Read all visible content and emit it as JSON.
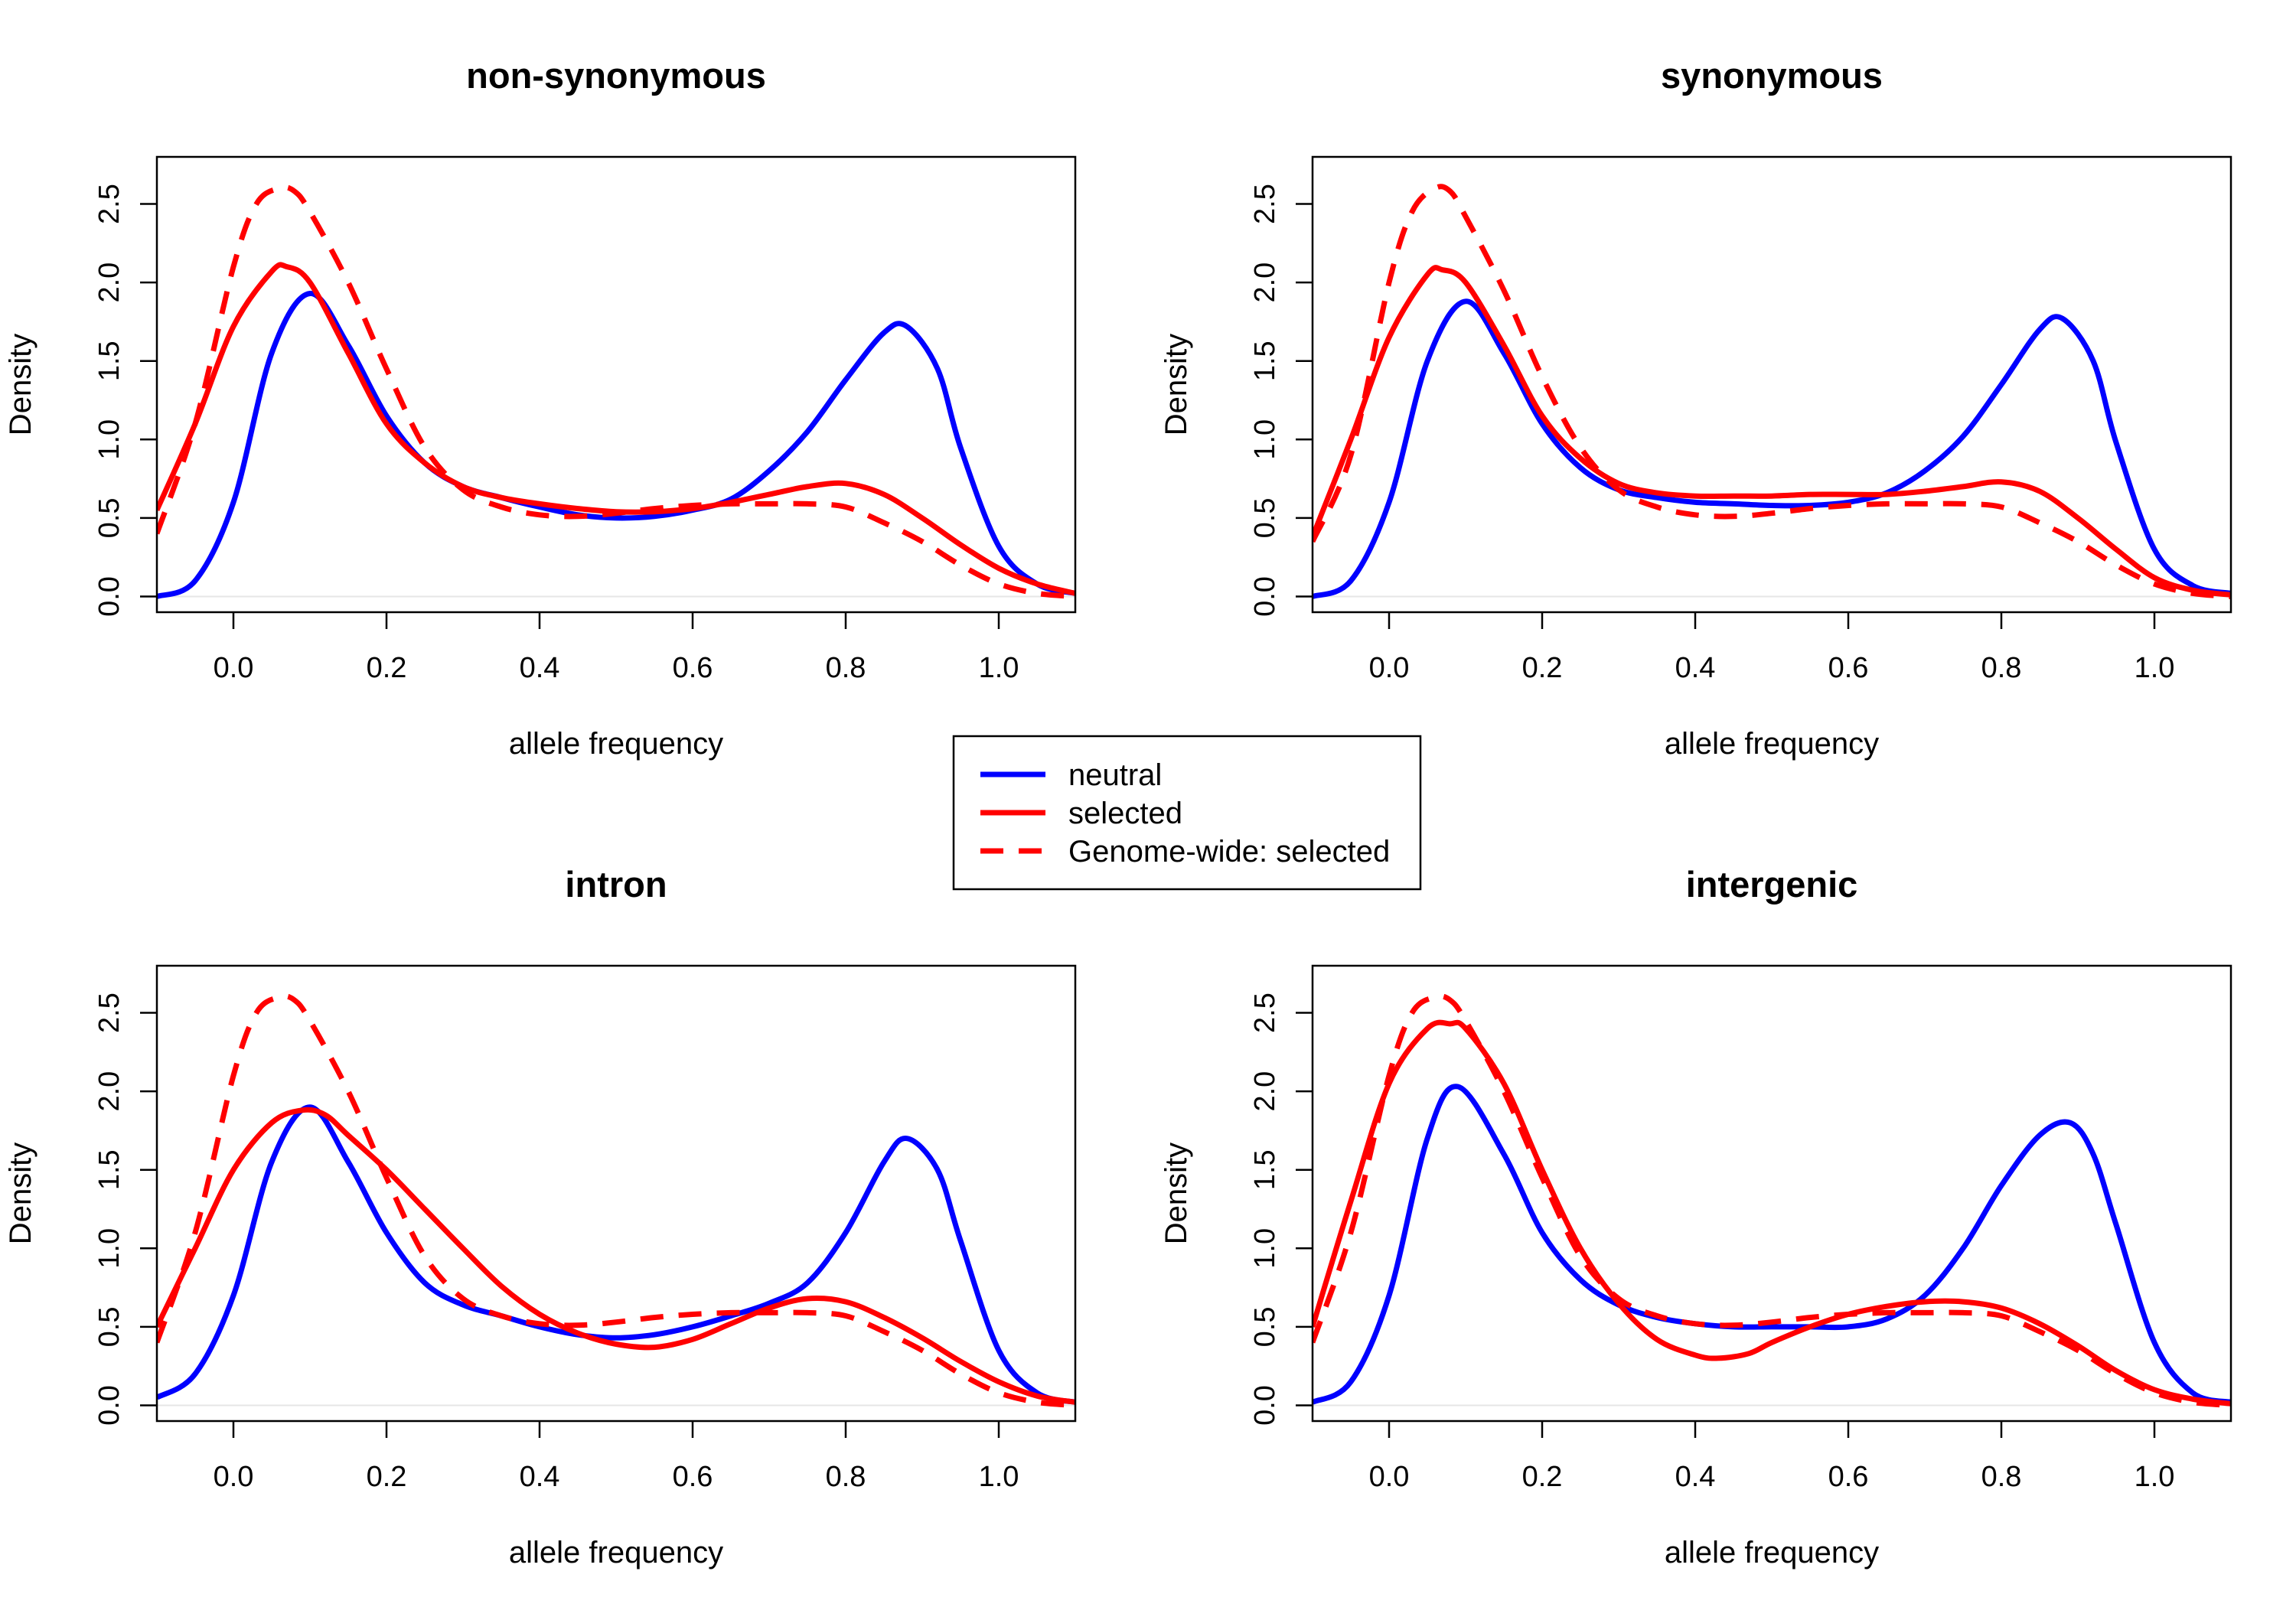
{
  "colors": {
    "neutral": "#0000ff",
    "selected": "#ff0000",
    "axis": "#000000"
  },
  "legend": {
    "placement": "center",
    "entries": [
      {
        "label": "neutral",
        "color": "#0000ff",
        "dash": "solid"
      },
      {
        "label": "selected",
        "color": "#ff0000",
        "dash": "solid"
      },
      {
        "label": "Genome-wide: selected",
        "color": "#ff0000",
        "dash": "dashed"
      }
    ]
  },
  "chart_data": [
    {
      "type": "line",
      "title": "non-synonymous",
      "xlabel": "allele frequency",
      "ylabel": "Density",
      "xlim": [
        -0.1,
        1.1
      ],
      "ylim": [
        -0.1,
        2.8
      ],
      "xticks": [
        "0.0",
        "0.2",
        "0.4",
        "0.6",
        "0.8",
        "1.0"
      ],
      "yticks": [
        "0.0",
        "0.5",
        "1.0",
        "1.5",
        "2.0",
        "2.5"
      ],
      "series": [
        {
          "name": "neutral",
          "color": "#0000ff",
          "dash": "solid",
          "x": [
            -0.1,
            -0.05,
            0.0,
            0.05,
            0.1,
            0.15,
            0.2,
            0.25,
            0.3,
            0.35,
            0.4,
            0.45,
            0.5,
            0.55,
            0.6,
            0.65,
            0.7,
            0.75,
            0.8,
            0.85,
            0.88,
            0.92,
            0.95,
            1.0,
            1.05,
            1.1
          ],
          "y": [
            0.0,
            0.1,
            0.6,
            1.55,
            1.93,
            1.6,
            1.15,
            0.85,
            0.7,
            0.63,
            0.57,
            0.52,
            0.5,
            0.51,
            0.55,
            0.62,
            0.8,
            1.05,
            1.38,
            1.68,
            1.72,
            1.45,
            0.95,
            0.32,
            0.08,
            0.02
          ]
        },
        {
          "name": "selected",
          "color": "#ff0000",
          "dash": "solid",
          "x": [
            -0.1,
            -0.05,
            0.0,
            0.05,
            0.07,
            0.1,
            0.15,
            0.2,
            0.25,
            0.3,
            0.35,
            0.4,
            0.45,
            0.5,
            0.55,
            0.6,
            0.65,
            0.7,
            0.75,
            0.8,
            0.85,
            0.9,
            0.95,
            1.0,
            1.05,
            1.1
          ],
          "y": [
            0.55,
            1.1,
            1.72,
            2.07,
            2.1,
            2.0,
            1.55,
            1.1,
            0.85,
            0.7,
            0.63,
            0.59,
            0.56,
            0.54,
            0.54,
            0.56,
            0.6,
            0.65,
            0.7,
            0.72,
            0.65,
            0.5,
            0.33,
            0.18,
            0.08,
            0.02
          ]
        },
        {
          "name": "Genome-wide: selected",
          "color": "#ff0000",
          "dash": "dashed",
          "x": [
            -0.1,
            -0.05,
            0.0,
            0.03,
            0.06,
            0.08,
            0.1,
            0.15,
            0.2,
            0.25,
            0.3,
            0.35,
            0.4,
            0.45,
            0.5,
            0.55,
            0.6,
            0.65,
            0.7,
            0.75,
            0.8,
            0.85,
            0.9,
            0.95,
            1.0,
            1.05,
            1.1
          ],
          "y": [
            0.4,
            1.1,
            2.1,
            2.5,
            2.6,
            2.58,
            2.45,
            2.0,
            1.45,
            0.95,
            0.68,
            0.57,
            0.52,
            0.51,
            0.53,
            0.56,
            0.58,
            0.59,
            0.59,
            0.59,
            0.57,
            0.47,
            0.35,
            0.2,
            0.08,
            0.02,
            0.0
          ]
        }
      ]
    },
    {
      "type": "line",
      "title": "synonymous",
      "xlabel": "allele frequency",
      "ylabel": "Density",
      "xlim": [
        -0.1,
        1.1
      ],
      "ylim": [
        -0.1,
        2.8
      ],
      "xticks": [
        "0.0",
        "0.2",
        "0.4",
        "0.6",
        "0.8",
        "1.0"
      ],
      "yticks": [
        "0.0",
        "0.5",
        "1.0",
        "1.5",
        "2.0",
        "2.5"
      ],
      "series": [
        {
          "name": "neutral",
          "color": "#0000ff",
          "dash": "solid",
          "x": [
            -0.1,
            -0.05,
            0.0,
            0.05,
            0.1,
            0.15,
            0.2,
            0.25,
            0.3,
            0.35,
            0.4,
            0.45,
            0.5,
            0.55,
            0.6,
            0.65,
            0.7,
            0.75,
            0.8,
            0.85,
            0.88,
            0.92,
            0.95,
            1.0,
            1.05,
            1.1
          ],
          "y": [
            0.0,
            0.1,
            0.6,
            1.5,
            1.88,
            1.55,
            1.1,
            0.82,
            0.68,
            0.63,
            0.6,
            0.59,
            0.58,
            0.58,
            0.6,
            0.66,
            0.8,
            1.02,
            1.35,
            1.7,
            1.77,
            1.5,
            0.98,
            0.3,
            0.07,
            0.02
          ]
        },
        {
          "name": "selected",
          "color": "#ff0000",
          "dash": "solid",
          "x": [
            -0.1,
            -0.05,
            0.0,
            0.05,
            0.07,
            0.1,
            0.15,
            0.2,
            0.25,
            0.3,
            0.35,
            0.4,
            0.45,
            0.5,
            0.55,
            0.6,
            0.65,
            0.7,
            0.75,
            0.8,
            0.85,
            0.9,
            0.95,
            1.0,
            1.05,
            1.1
          ],
          "y": [
            0.38,
            1.0,
            1.65,
            2.05,
            2.08,
            2.0,
            1.6,
            1.15,
            0.88,
            0.72,
            0.66,
            0.64,
            0.64,
            0.64,
            0.65,
            0.65,
            0.65,
            0.67,
            0.7,
            0.73,
            0.67,
            0.5,
            0.3,
            0.12,
            0.04,
            0.01
          ]
        },
        {
          "name": "Genome-wide: selected",
          "color": "#ff0000",
          "dash": "dashed",
          "x": [
            -0.1,
            -0.05,
            0.0,
            0.03,
            0.06,
            0.08,
            0.1,
            0.15,
            0.2,
            0.25,
            0.3,
            0.35,
            0.4,
            0.45,
            0.5,
            0.55,
            0.6,
            0.65,
            0.7,
            0.75,
            0.8,
            0.85,
            0.9,
            0.95,
            1.0,
            1.05,
            1.1
          ],
          "y": [
            0.35,
            0.9,
            2.0,
            2.45,
            2.6,
            2.58,
            2.42,
            1.95,
            1.4,
            0.95,
            0.68,
            0.57,
            0.52,
            0.51,
            0.53,
            0.56,
            0.58,
            0.59,
            0.59,
            0.59,
            0.57,
            0.47,
            0.35,
            0.2,
            0.08,
            0.02,
            0.0
          ]
        }
      ]
    },
    {
      "type": "line",
      "title": "intron",
      "xlabel": "allele frequency",
      "ylabel": "Density",
      "xlim": [
        -0.1,
        1.1
      ],
      "ylim": [
        -0.1,
        2.8
      ],
      "xticks": [
        "0.0",
        "0.2",
        "0.4",
        "0.6",
        "0.8",
        "1.0"
      ],
      "yticks": [
        "0.0",
        "0.5",
        "1.0",
        "1.5",
        "2.0",
        "2.5"
      ],
      "series": [
        {
          "name": "neutral",
          "color": "#0000ff",
          "dash": "solid",
          "x": [
            -0.1,
            -0.05,
            0.0,
            0.05,
            0.1,
            0.15,
            0.2,
            0.25,
            0.3,
            0.35,
            0.4,
            0.45,
            0.5,
            0.55,
            0.6,
            0.65,
            0.7,
            0.75,
            0.8,
            0.85,
            0.88,
            0.92,
            0.95,
            1.0,
            1.05,
            1.1
          ],
          "y": [
            0.05,
            0.2,
            0.7,
            1.55,
            1.9,
            1.55,
            1.1,
            0.78,
            0.64,
            0.57,
            0.5,
            0.45,
            0.43,
            0.45,
            0.5,
            0.57,
            0.65,
            0.78,
            1.1,
            1.55,
            1.7,
            1.5,
            1.05,
            0.35,
            0.08,
            0.02
          ]
        },
        {
          "name": "selected",
          "color": "#ff0000",
          "dash": "solid",
          "x": [
            -0.1,
            -0.05,
            0.0,
            0.05,
            0.09,
            0.12,
            0.15,
            0.2,
            0.25,
            0.3,
            0.35,
            0.4,
            0.45,
            0.5,
            0.55,
            0.6,
            0.65,
            0.7,
            0.75,
            0.8,
            0.85,
            0.9,
            0.95,
            1.0,
            1.05,
            1.1
          ],
          "y": [
            0.5,
            1.0,
            1.5,
            1.8,
            1.88,
            1.85,
            1.72,
            1.5,
            1.25,
            1.0,
            0.76,
            0.58,
            0.46,
            0.39,
            0.37,
            0.42,
            0.52,
            0.62,
            0.68,
            0.66,
            0.56,
            0.43,
            0.28,
            0.15,
            0.06,
            0.02
          ]
        },
        {
          "name": "Genome-wide: selected",
          "color": "#ff0000",
          "dash": "dashed",
          "x": [
            -0.1,
            -0.05,
            0.0,
            0.03,
            0.06,
            0.08,
            0.1,
            0.15,
            0.2,
            0.25,
            0.3,
            0.35,
            0.4,
            0.45,
            0.5,
            0.55,
            0.6,
            0.65,
            0.7,
            0.75,
            0.8,
            0.85,
            0.9,
            0.95,
            1.0,
            1.05,
            1.1
          ],
          "y": [
            0.4,
            1.1,
            2.1,
            2.5,
            2.6,
            2.58,
            2.45,
            2.0,
            1.45,
            0.95,
            0.68,
            0.57,
            0.52,
            0.51,
            0.53,
            0.56,
            0.58,
            0.59,
            0.59,
            0.59,
            0.57,
            0.47,
            0.35,
            0.2,
            0.08,
            0.02,
            0.0
          ]
        }
      ]
    },
    {
      "type": "line",
      "title": "intergenic",
      "xlabel": "allele frequency",
      "ylabel": "Density",
      "xlim": [
        -0.1,
        1.1
      ],
      "ylim": [
        -0.1,
        2.8
      ],
      "xticks": [
        "0.0",
        "0.2",
        "0.4",
        "0.6",
        "0.8",
        "1.0"
      ],
      "yticks": [
        "0.0",
        "0.5",
        "1.0",
        "1.5",
        "2.0",
        "2.5"
      ],
      "series": [
        {
          "name": "neutral",
          "color": "#0000ff",
          "dash": "solid",
          "x": [
            -0.1,
            -0.05,
            0.0,
            0.05,
            0.09,
            0.15,
            0.2,
            0.25,
            0.3,
            0.35,
            0.4,
            0.45,
            0.5,
            0.55,
            0.6,
            0.65,
            0.7,
            0.75,
            0.8,
            0.85,
            0.89,
            0.92,
            0.95,
            1.0,
            1.05,
            1.1
          ],
          "y": [
            0.02,
            0.15,
            0.7,
            1.7,
            2.03,
            1.6,
            1.1,
            0.8,
            0.64,
            0.56,
            0.52,
            0.5,
            0.5,
            0.5,
            0.5,
            0.55,
            0.7,
            1.0,
            1.4,
            1.72,
            1.8,
            1.6,
            1.15,
            0.4,
            0.08,
            0.02
          ]
        },
        {
          "name": "selected",
          "color": "#ff0000",
          "dash": "solid",
          "x": [
            -0.1,
            -0.05,
            0.0,
            0.05,
            0.08,
            0.1,
            0.15,
            0.2,
            0.25,
            0.3,
            0.35,
            0.4,
            0.43,
            0.47,
            0.5,
            0.55,
            0.6,
            0.65,
            0.7,
            0.75,
            0.8,
            0.85,
            0.9,
            0.95,
            1.0,
            1.05,
            1.1
          ],
          "y": [
            0.5,
            1.3,
            2.05,
            2.4,
            2.43,
            2.4,
            2.05,
            1.5,
            1.0,
            0.65,
            0.42,
            0.32,
            0.3,
            0.33,
            0.4,
            0.5,
            0.58,
            0.63,
            0.66,
            0.66,
            0.62,
            0.52,
            0.38,
            0.22,
            0.1,
            0.04,
            0.01
          ]
        },
        {
          "name": "Genome-wide: selected",
          "color": "#ff0000",
          "dash": "dashed",
          "x": [
            -0.1,
            -0.05,
            0.0,
            0.03,
            0.06,
            0.08,
            0.1,
            0.15,
            0.2,
            0.25,
            0.3,
            0.35,
            0.4,
            0.45,
            0.5,
            0.55,
            0.6,
            0.65,
            0.7,
            0.75,
            0.8,
            0.85,
            0.9,
            0.95,
            1.0,
            1.05,
            1.1
          ],
          "y": [
            0.4,
            1.1,
            2.1,
            2.5,
            2.6,
            2.58,
            2.45,
            2.0,
            1.45,
            0.95,
            0.68,
            0.57,
            0.52,
            0.51,
            0.53,
            0.56,
            0.58,
            0.59,
            0.59,
            0.59,
            0.57,
            0.47,
            0.35,
            0.2,
            0.08,
            0.02,
            0.0
          ]
        }
      ]
    }
  ]
}
